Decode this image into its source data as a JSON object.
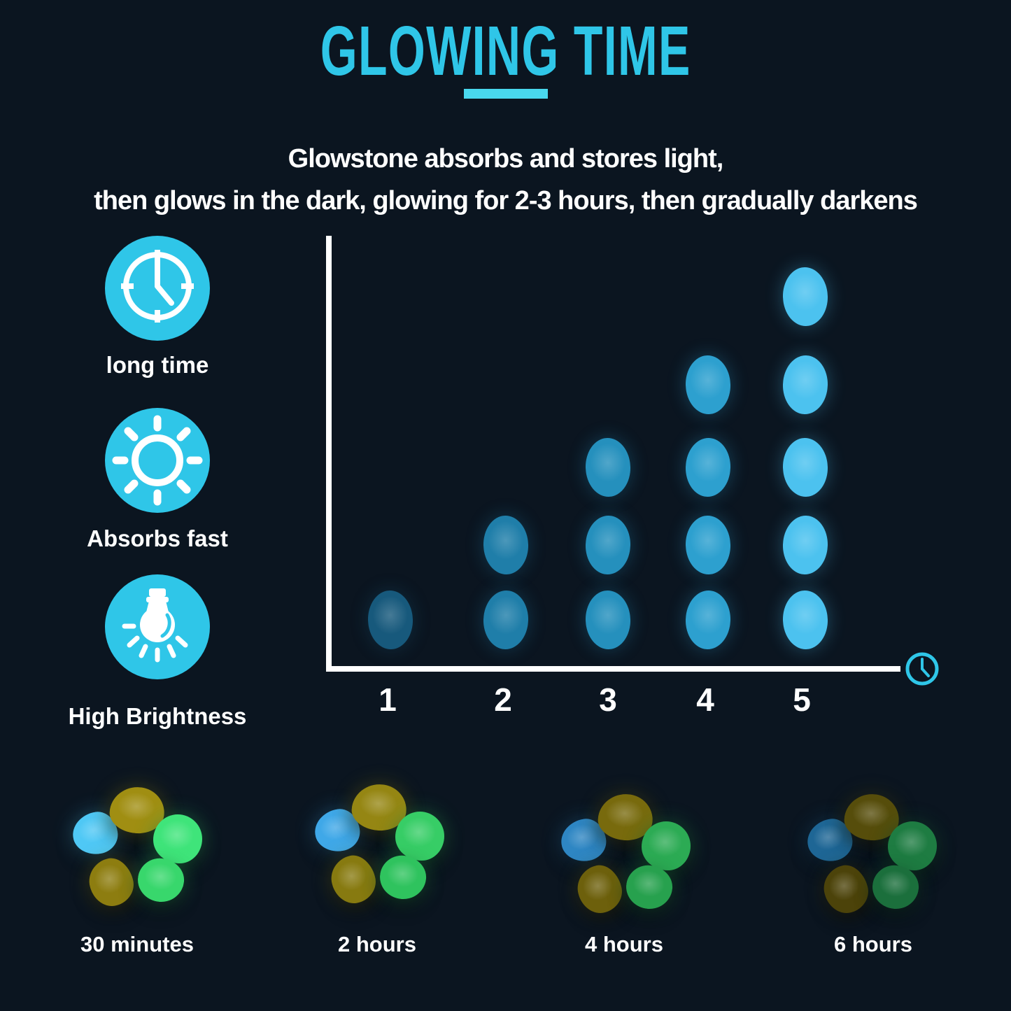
{
  "page": {
    "background_color": "#0b1520",
    "accent_color": "#2fc6e8"
  },
  "header": {
    "title": "GLOWING TIME",
    "underline_color": "#49d8ee",
    "subtitle_line1": "Glowstone absorbs and stores light,",
    "subtitle_line2": "then glows in the dark, glowing for 2-3 hours, then gradually darkens"
  },
  "features": [
    {
      "icon": "clock-icon",
      "label": "long time"
    },
    {
      "icon": "sun-icon",
      "label": "Absorbs fast"
    },
    {
      "icon": "bulb-icon",
      "label": "High Brightness"
    }
  ],
  "chart_data": {
    "type": "bar",
    "variant": "pictogram - each column is a stack of glowing pebble ovals",
    "categories": [
      "1",
      "2",
      "3",
      "4",
      "5"
    ],
    "values": [
      1,
      2,
      3,
      4,
      5
    ],
    "title": "",
    "xlabel": "",
    "ylabel": "",
    "x_axis_icon": "clock-icon",
    "axis_color": "#ffffff",
    "gridlines": false,
    "column_colors": [
      "#17597c",
      "#1f7ea9",
      "#2590bd",
      "#2da0cf",
      "#4cc2ef"
    ],
    "brightness_note": "pebble glow gets brighter from column 1 to column 5"
  },
  "timeline": {
    "pebble_order": [
      "blue-pebble-left",
      "yellow-pebble-top",
      "green-pebble-right",
      "yellow-pebble-bottom-left",
      "green-pebble-bottom"
    ],
    "items": [
      {
        "label": "30 minutes",
        "pebble_colors": [
          "#4fc8f5",
          "#a08e12",
          "#3fe47a",
          "#8d7d10",
          "#38d76c"
        ]
      },
      {
        "label": "2 hours",
        "pebble_colors": [
          "#3fa8e8",
          "#958613",
          "#37cd66",
          "#877a10",
          "#2fc35e"
        ]
      },
      {
        "label": "4 hours",
        "pebble_colors": [
          "#2e86c3",
          "#786a0d",
          "#2cab54",
          "#6d600c",
          "#27a14e"
        ]
      },
      {
        "label": "6 hours",
        "pebble_colors": [
          "#1e6695",
          "#564d0b",
          "#1e7c42",
          "#4c430a",
          "#1b6f3c"
        ]
      }
    ]
  }
}
